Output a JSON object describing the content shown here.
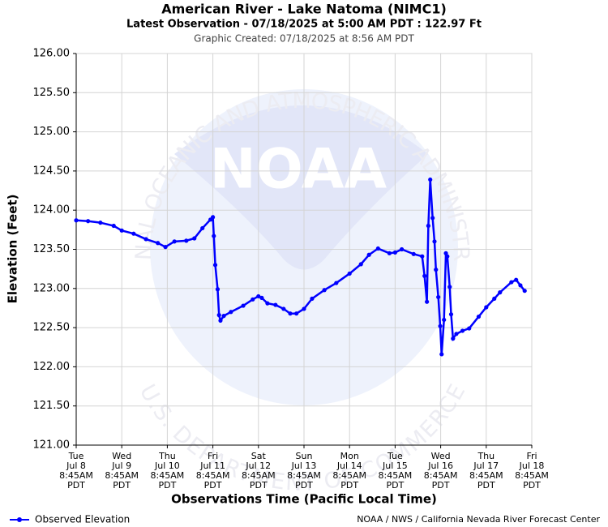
{
  "chart_data": {
    "type": "line",
    "title": "American River - Lake Natoma (NIMC1)",
    "subtitle": "Latest Observation - 07/18/2025 at 5:00 AM PDT : 122.97 Ft",
    "created": "Graphic Created: 07/18/2025 at 8:56 AM PDT",
    "x_label": "Observations Time (Pacific Local Time)",
    "y_label": "Elevation (Feet)",
    "credit": "NOAA / NWS / California Nevada River Forecast Center",
    "watermark": {
      "top": "NATIONAL OCEANIC AND ATMOSPHERIC ADMINISTRATION",
      "center": "NOAA",
      "bottom": "U.S. DEPARTMENT OF COMMERCE"
    },
    "grid": true,
    "legend": "bottom-left",
    "xlim": [
      "Jul 8 08:45",
      "Jul 18 08:45"
    ],
    "ylim": [
      121,
      126
    ],
    "yticks": [
      {
        "value": 121,
        "label": "121.00"
      },
      {
        "value": 121.5,
        "label": "121.50"
      },
      {
        "value": 122,
        "label": "122.00"
      },
      {
        "value": 122.5,
        "label": "122.50"
      },
      {
        "value": 123,
        "label": "123.00"
      },
      {
        "value": 123.5,
        "label": "123.50"
      },
      {
        "value": 124,
        "label": "124.00"
      },
      {
        "value": 124.5,
        "label": "124.50"
      },
      {
        "value": 125,
        "label": "125.00"
      },
      {
        "value": 125.5,
        "label": "125.50"
      },
      {
        "value": 126,
        "label": "126.00"
      }
    ],
    "xticks": [
      {
        "value": "Jul 8 08:45",
        "label": [
          "Tue",
          "Jul 8",
          "8:45AM",
          "PDT"
        ]
      },
      {
        "value": "Jul 9 08:45",
        "label": [
          "Wed",
          "Jul 9",
          "8:45AM",
          "PDT"
        ]
      },
      {
        "value": "Jul 10 08:45",
        "label": [
          "Thu",
          "Jul 10",
          "8:45AM",
          "PDT"
        ]
      },
      {
        "value": "Jul 11 08:45",
        "label": [
          "Fri",
          "Jul 11",
          "8:45AM",
          "PDT"
        ]
      },
      {
        "value": "Jul 12 08:45",
        "label": [
          "Sat",
          "Jul 12",
          "8:45AM",
          "PDT"
        ]
      },
      {
        "value": "Jul 13 08:45",
        "label": [
          "Sun",
          "Jul 13",
          "8:45AM",
          "PDT"
        ]
      },
      {
        "value": "Jul 14 08:45",
        "label": [
          "Mon",
          "Jul 14",
          "8:45AM",
          "PDT"
        ]
      },
      {
        "value": "Jul 15 08:45",
        "label": [
          "Tue",
          "Jul 15",
          "8:45AM",
          "PDT"
        ]
      },
      {
        "value": "Jul 16 08:45",
        "label": [
          "Wed",
          "Jul 16",
          "8:45AM",
          "PDT"
        ]
      },
      {
        "value": "Jul 17 08:45",
        "label": [
          "Thu",
          "Jul 17",
          "8:45AM",
          "PDT"
        ]
      },
      {
        "value": "Jul 18 08:45",
        "label": [
          "Fri",
          "Jul 18",
          "8:45AM",
          "PDT"
        ]
      }
    ],
    "x": [
      "Jul 8 08:45",
      "Jul 8 15:00",
      "Jul 8 21:30",
      "Jul 9 04:30",
      "Jul 9 08:45",
      "Jul 9 15:00",
      "Jul 9 21:30",
      "Jul 10 03:45",
      "Jul 10 07:45",
      "Jul 10 12:30",
      "Jul 10 18:45",
      "Jul 10 23:00",
      "Jul 11 03:15",
      "Jul 11 07:30",
      "Jul 11 08:45",
      "Jul 11 09:15",
      "Jul 11 10:00",
      "Jul 11 11:15",
      "Jul 11 12:00",
      "Jul 11 12:45",
      "Jul 11 14:30",
      "Jul 11 18:15",
      "Jul 12 00:45",
      "Jul 12 05:45",
      "Jul 12 08:45",
      "Jul 12 10:30",
      "Jul 12 13:30",
      "Jul 12 17:45",
      "Jul 12 22:00",
      "Jul 13 01:30",
      "Jul 13 04:45",
      "Jul 13 08:45",
      "Jul 13 13:00",
      "Jul 13 19:30",
      "Jul 14 01:45",
      "Jul 14 08:45",
      "Jul 14 14:45",
      "Jul 14 19:00",
      "Jul 14 23:45",
      "Jul 15 05:45",
      "Jul 15 08:45",
      "Jul 15 12:15",
      "Jul 15 18:30",
      "Jul 15 23:00",
      "Jul 16 00:15",
      "Jul 16 01:30",
      "Jul 16 02:15",
      "Jul 16 03:15",
      "Jul 16 04:30",
      "Jul 16 05:30",
      "Jul 16 06:15",
      "Jul 16 07:30",
      "Jul 16 08:30",
      "Jul 16 09:15",
      "Jul 16 10:30",
      "Jul 16 11:30",
      "Jul 16 12:15",
      "Jul 16 13:30",
      "Jul 16 14:15",
      "Jul 16 15:15",
      "Jul 16 17:00",
      "Jul 16 20:15",
      "Jul 16 23:45",
      "Jul 17 04:45",
      "Jul 17 08:45",
      "Jul 17 13:00",
      "Jul 17 16:00",
      "Jul 17 22:00",
      "Jul 18 00:30",
      "Jul 18 02:45",
      "Jul 18 05:00"
    ],
    "series": [
      {
        "name": "Observed Elevation",
        "color": "#0000ff",
        "values": [
          123.87,
          123.86,
          123.84,
          123.8,
          123.74,
          123.7,
          123.63,
          123.58,
          123.53,
          123.6,
          123.61,
          123.64,
          123.77,
          123.88,
          123.91,
          123.67,
          123.3,
          122.99,
          122.66,
          122.59,
          122.65,
          122.7,
          122.78,
          122.86,
          122.9,
          122.88,
          122.81,
          122.79,
          122.74,
          122.68,
          122.68,
          122.74,
          122.87,
          122.98,
          123.07,
          123.19,
          123.31,
          123.43,
          123.51,
          123.45,
          123.46,
          123.5,
          123.44,
          123.41,
          123.16,
          122.83,
          123.8,
          124.39,
          123.9,
          123.6,
          123.24,
          122.89,
          122.52,
          122.16,
          122.6,
          123.45,
          123.41,
          123.02,
          122.67,
          122.36,
          122.42,
          122.46,
          122.49,
          122.64,
          122.76,
          122.87,
          122.95,
          123.08,
          123.11,
          123.04,
          122.97
        ]
      }
    ]
  }
}
